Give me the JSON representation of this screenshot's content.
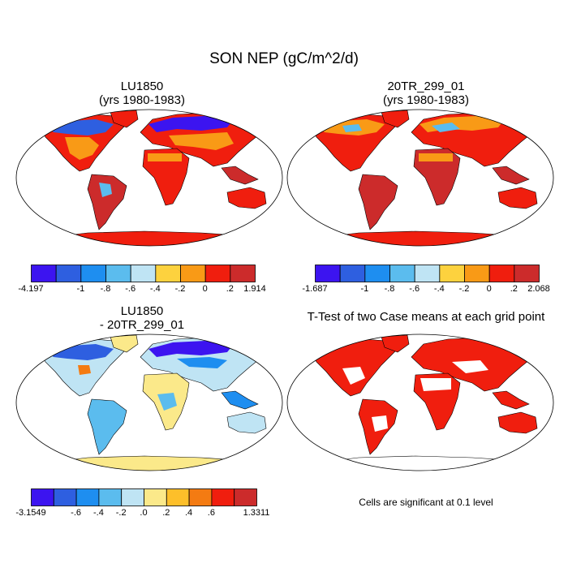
{
  "title": "SON NEP (gC/m^2/d)",
  "panels": [
    {
      "title_line1": "LU1850",
      "title_line2": "(yrs 1980-1983)",
      "colorbar": {
        "colors": [
          "#3c14f0",
          "#2e5fe0",
          "#1e8ef0",
          "#5bbcee",
          "#bfe4f4",
          "#fdd23e",
          "#f99a16",
          "#f01e0e",
          "#cc2b2b"
        ],
        "labels": [
          {
            "text": "-4.197",
            "boundary": 0
          },
          {
            "text": "-1",
            "boundary": 2
          },
          {
            "text": "-.8",
            "boundary": 3
          },
          {
            "text": "-.6",
            "boundary": 4
          },
          {
            "text": "-.4",
            "boundary": 5
          },
          {
            "text": "-.2",
            "boundary": 6
          },
          {
            "text": "0",
            "boundary": 7
          },
          {
            "text": ".2",
            "boundary": 8
          },
          {
            "text": "1.914",
            "boundary": 9
          }
        ]
      }
    },
    {
      "title_line1": "20TR_299_01",
      "title_line2": "(yrs 1980-1983)",
      "colorbar": {
        "colors": [
          "#3c14f0",
          "#2e5fe0",
          "#1e8ef0",
          "#5bbcee",
          "#bfe4f4",
          "#fdd23e",
          "#f99a16",
          "#f01e0e",
          "#cc2b2b"
        ],
        "labels": [
          {
            "text": "-1.687",
            "boundary": 0
          },
          {
            "text": "-1",
            "boundary": 2
          },
          {
            "text": "-.8",
            "boundary": 3
          },
          {
            "text": "-.6",
            "boundary": 4
          },
          {
            "text": "-.4",
            "boundary": 5
          },
          {
            "text": "-.2",
            "boundary": 6
          },
          {
            "text": "0",
            "boundary": 7
          },
          {
            "text": ".2",
            "boundary": 8
          },
          {
            "text": "2.068",
            "boundary": 9
          }
        ]
      }
    },
    {
      "title_line1": "LU1850",
      "title_line2": "- 20TR_299_01",
      "colorbar": {
        "colors": [
          "#3c14f0",
          "#2e5fe0",
          "#1e8ef0",
          "#5bbcee",
          "#bfe4f4",
          "#fbe98a",
          "#fdbf2a",
          "#f47b12",
          "#f01e0e",
          "#cc2b2b"
        ],
        "labels": [
          {
            "text": "-3.1549",
            "boundary": 0
          },
          {
            "text": "-.6",
            "boundary": 2
          },
          {
            "text": "-.4",
            "boundary": 3
          },
          {
            "text": "-.2",
            "boundary": 4
          },
          {
            "text": ".0",
            "boundary": 5
          },
          {
            "text": ".2",
            "boundary": 6
          },
          {
            "text": ".4",
            "boundary": 7
          },
          {
            "text": ".6",
            "boundary": 8
          },
          {
            "text": "1.3311",
            "boundary": 10
          }
        ]
      }
    },
    {
      "title_line1": "T-Test of two Case means at each grid point",
      "note": "Cells are significant at 0.1 level"
    }
  ]
}
